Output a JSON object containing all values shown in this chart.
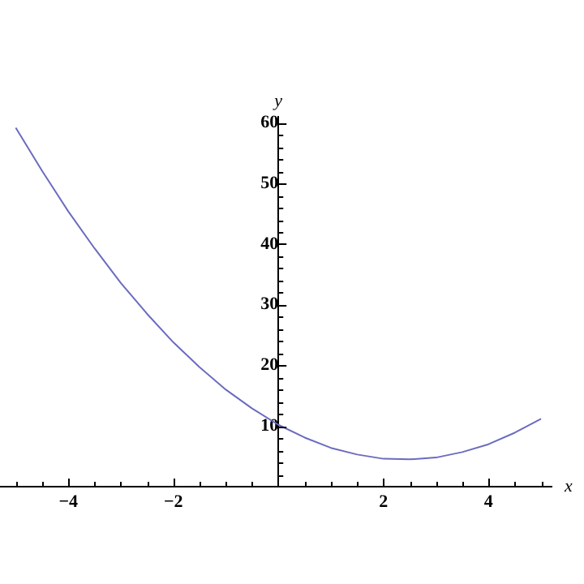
{
  "chart_data": {
    "type": "line",
    "xlabel": "x",
    "ylabel": "y",
    "x": [
      -5,
      -4.5,
      -4,
      -3.5,
      -3,
      -2.5,
      -2,
      -1.5,
      -1,
      -0.5,
      0,
      0.5,
      1,
      1.5,
      2,
      2.5,
      3,
      3.5,
      4,
      4.5,
      5
    ],
    "series": [
      {
        "color": "#6b6bc0",
        "values": [
          59.2,
          52.1,
          45.4,
          39.3,
          33.6,
          28.5,
          23.8,
          19.7,
          16,
          12.9,
          10.2,
          8.1,
          6.4,
          5.3,
          4.6,
          4.5,
          4.8,
          5.7,
          7,
          8.9,
          11.2
        ]
      }
    ],
    "xlim": [
      -5.3,
      5.2
    ],
    "ylim": [
      0,
      61
    ],
    "xticks": [
      {
        "value": -5,
        "label": null
      },
      {
        "value": -4.5,
        "label": null
      },
      -4,
      {
        "value": -3.5,
        "label": null
      },
      {
        "value": -3,
        "label": null
      },
      {
        "value": -2.5,
        "label": null
      },
      -2,
      {
        "value": -1.5,
        "label": null
      },
      {
        "value": -1,
        "label": null
      },
      {
        "value": -0.5,
        "label": null
      },
      {
        "value": 0.5,
        "label": null
      },
      {
        "value": 1,
        "label": null
      },
      {
        "value": 1.5,
        "label": null
      },
      2,
      {
        "value": 2.5,
        "label": null
      },
      {
        "value": 3,
        "label": null
      },
      {
        "value": 3.5,
        "label": null
      },
      4,
      {
        "value": 4.5,
        "label": null
      },
      {
        "value": 5,
        "label": null
      }
    ],
    "yticks": [
      {
        "value": 2,
        "label": null
      },
      {
        "value": 4,
        "label": null
      },
      {
        "value": 6,
        "label": null
      },
      {
        "value": 8,
        "label": null
      },
      10,
      {
        "value": 12,
        "label": null
      },
      {
        "value": 14,
        "label": null
      },
      {
        "value": 16,
        "label": null
      },
      {
        "value": 18,
        "label": null
      },
      20,
      {
        "value": 22,
        "label": null
      },
      {
        "value": 24,
        "label": null
      },
      {
        "value": 26,
        "label": null
      },
      {
        "value": 28,
        "label": null
      },
      30,
      {
        "value": 32,
        "label": null
      },
      {
        "value": 34,
        "label": null
      },
      {
        "value": 36,
        "label": null
      },
      {
        "value": 38,
        "label": null
      },
      40,
      {
        "value": 42,
        "label": null
      },
      {
        "value": 44,
        "label": null
      },
      {
        "value": 46,
        "label": null
      },
      {
        "value": 48,
        "label": null
      },
      50,
      {
        "value": 52,
        "label": null
      },
      {
        "value": 54,
        "label": null
      },
      {
        "value": 56,
        "label": null
      },
      {
        "value": 58,
        "label": null
      },
      60
    ],
    "grid": false,
    "legend": false,
    "marker": "none",
    "line_style": "solid"
  }
}
